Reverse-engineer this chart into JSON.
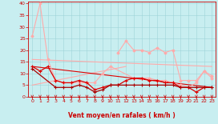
{
  "bg_color": "#c8eef0",
  "grid_color": "#9ed4d8",
  "text_color": "#cc0000",
  "xlabel": "Vent moyen/en rafales ( km/h )",
  "ylim": [
    0,
    41
  ],
  "yticks": [
    0,
    5,
    10,
    15,
    20,
    25,
    30,
    35,
    40
  ],
  "xticks": [
    0,
    1,
    2,
    3,
    4,
    5,
    6,
    7,
    8,
    9,
    10,
    11,
    12,
    13,
    14,
    15,
    16,
    17,
    18,
    19,
    20,
    21,
    22,
    23
  ],
  "x_all": [
    0,
    1,
    2,
    3,
    4,
    5,
    6,
    7,
    8,
    9,
    10,
    11,
    12,
    13,
    14,
    15,
    16,
    17,
    18,
    19,
    20,
    21,
    22,
    23
  ],
  "line_pink_top_x": [
    0,
    1,
    2,
    3,
    4,
    5,
    6,
    7,
    8,
    9,
    10,
    13,
    14,
    15,
    16,
    17,
    18,
    19,
    20,
    21,
    22,
    23
  ],
  "line_pink_top_y": [
    26,
    40,
    16,
    7,
    6,
    6,
    6,
    6,
    6,
    10,
    13,
    8,
    8,
    8,
    7,
    7,
    6,
    5,
    4,
    6,
    11,
    9
  ],
  "line_pink_mid_x": [
    11,
    12,
    13,
    14,
    15,
    16,
    17,
    18,
    19,
    20,
    21,
    22,
    23
  ],
  "line_pink_mid_y": [
    19,
    24,
    20,
    20,
    19,
    21,
    19,
    20,
    7,
    7,
    7,
    11,
    8
  ],
  "line_pink_trend1_x": [
    0,
    23
  ],
  "line_pink_trend1_y": [
    16,
    13
  ],
  "line_pink_trend2_x": [
    0,
    12
  ],
  "line_pink_trend2_y": [
    5,
    13
  ],
  "line_red_trend_x": [
    0,
    23
  ],
  "line_red_trend_y": [
    13,
    4
  ],
  "line_red_main_x": [
    0,
    1,
    2,
    3,
    4,
    5,
    6,
    7,
    8,
    9,
    10,
    11,
    12,
    13,
    14,
    15,
    16,
    17,
    18,
    19,
    20,
    21,
    22,
    23
  ],
  "line_red_main_y": [
    13,
    11,
    13,
    7,
    6,
    6,
    7,
    6,
    3,
    4,
    5,
    5,
    7,
    8,
    8,
    7,
    7,
    6,
    6,
    4,
    4,
    2,
    4,
    4
  ],
  "line_darkred_x": [
    0,
    3,
    4,
    5,
    6,
    7,
    8,
    9,
    10,
    11,
    12,
    13,
    14,
    15,
    16,
    17,
    18,
    19,
    20,
    21,
    22,
    23
  ],
  "line_darkred_y": [
    12,
    4,
    4,
    4,
    5,
    4,
    2,
    3,
    5,
    5,
    5,
    5,
    5,
    5,
    5,
    5,
    5,
    4,
    4,
    4,
    4,
    4
  ],
  "color_pink": "#ffaaaa",
  "color_red": "#dd0000",
  "color_darkred": "#aa0000"
}
